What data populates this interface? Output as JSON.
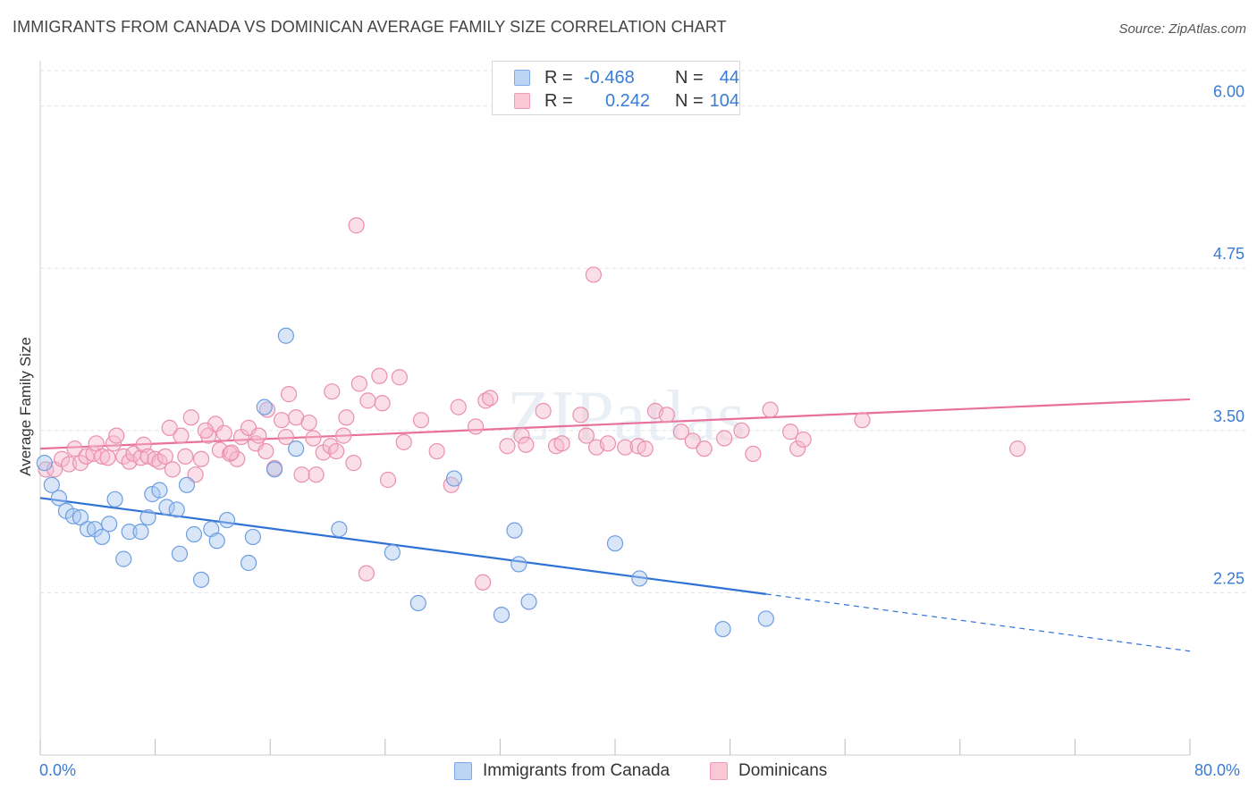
{
  "title": "IMMIGRANTS FROM CANADA VS DOMINICAN AVERAGE FAMILY SIZE CORRELATION CHART",
  "source": "Source: ZipAtlas.com",
  "colors": {
    "blue_fill": "#a9c8f0",
    "blue_stroke": "#6d9ee0",
    "blue_line": "#2f72d6",
    "pink_fill": "#f7b9cb",
    "pink_stroke": "#ea8fac",
    "pink_line": "#e8709a",
    "tick_text": "#3a7bd5",
    "grid": "#e3e3e3"
  },
  "legend": {
    "rows": [
      {
        "r_label": "R =",
        "r_value": "-0.468",
        "n_label": "N =",
        "n_value": "44",
        "color": "blue"
      },
      {
        "r_label": "R =",
        "r_value": "0.242",
        "n_label": "N =",
        "n_value": "104",
        "color": "pink"
      }
    ]
  },
  "bottom_legend": [
    {
      "label": "Immigrants from Canada",
      "color": "blue"
    },
    {
      "label": "Dominicans",
      "color": "pink"
    }
  ],
  "chart_data": {
    "type": "scatter",
    "ylabel": "Average Family Size",
    "xlabel": "",
    "xlim": [
      0,
      80
    ],
    "ylim": [
      1.0,
      6.3
    ],
    "x_tick_labels": [
      "0.0%",
      "80.0%"
    ],
    "y_ticks": [
      2.25,
      3.5,
      4.75,
      6.0
    ],
    "y_tick_labels": [
      "2.25",
      "3.50",
      "4.75",
      "6.00"
    ],
    "grid": "horizontal dashed",
    "watermark": "ZIPatlas",
    "series": [
      {
        "name": "Immigrants from Canada",
        "color": "blue",
        "points": [
          [
            0.3,
            3.25
          ],
          [
            0.8,
            3.08
          ],
          [
            1.3,
            2.98
          ],
          [
            1.8,
            2.88
          ],
          [
            2.3,
            2.84
          ],
          [
            2.8,
            2.83
          ],
          [
            3.3,
            2.74
          ],
          [
            3.8,
            2.74
          ],
          [
            4.3,
            2.68
          ],
          [
            4.8,
            2.78
          ],
          [
            5.2,
            2.97
          ],
          [
            5.8,
            2.51
          ],
          [
            6.2,
            2.72
          ],
          [
            7.0,
            2.72
          ],
          [
            7.5,
            2.83
          ],
          [
            7.8,
            3.01
          ],
          [
            8.3,
            3.04
          ],
          [
            8.8,
            2.91
          ],
          [
            9.5,
            2.89
          ],
          [
            9.7,
            2.55
          ],
          [
            10.2,
            3.08
          ],
          [
            10.7,
            2.7
          ],
          [
            11.2,
            2.35
          ],
          [
            11.9,
            2.74
          ],
          [
            12.3,
            2.65
          ],
          [
            13.0,
            2.81
          ],
          [
            14.5,
            2.48
          ],
          [
            14.8,
            2.68
          ],
          [
            15.6,
            3.68
          ],
          [
            16.3,
            3.2
          ],
          [
            17.1,
            4.23
          ],
          [
            17.8,
            3.36
          ],
          [
            20.8,
            2.74
          ],
          [
            24.5,
            2.56
          ],
          [
            26.3,
            2.17
          ],
          [
            28.8,
            3.13
          ],
          [
            32.1,
            2.08
          ],
          [
            33.0,
            2.73
          ],
          [
            33.3,
            2.47
          ],
          [
            34.0,
            2.18
          ],
          [
            40.0,
            2.63
          ],
          [
            41.7,
            2.36
          ],
          [
            47.5,
            1.97
          ],
          [
            50.5,
            2.05
          ]
        ],
        "trend": {
          "x0": 0.0,
          "y0": 2.98,
          "x1": 50.5,
          "y1": 2.24,
          "dashed_to_x": 80.0,
          "dashed_to_y": 1.8
        }
      },
      {
        "name": "Dominicans",
        "color": "pink",
        "points": [
          [
            0.4,
            3.2
          ],
          [
            1.0,
            3.2
          ],
          [
            1.5,
            3.28
          ],
          [
            2.0,
            3.24
          ],
          [
            2.4,
            3.36
          ],
          [
            2.8,
            3.25
          ],
          [
            3.2,
            3.3
          ],
          [
            3.7,
            3.32
          ],
          [
            3.9,
            3.4
          ],
          [
            4.3,
            3.3
          ],
          [
            4.7,
            3.29
          ],
          [
            5.1,
            3.4
          ],
          [
            5.3,
            3.46
          ],
          [
            5.8,
            3.3
          ],
          [
            6.2,
            3.26
          ],
          [
            6.5,
            3.32
          ],
          [
            7.0,
            3.29
          ],
          [
            7.2,
            3.39
          ],
          [
            7.5,
            3.3
          ],
          [
            8.0,
            3.28
          ],
          [
            8.3,
            3.26
          ],
          [
            8.7,
            3.3
          ],
          [
            9.2,
            3.2
          ],
          [
            9.8,
            3.46
          ],
          [
            10.1,
            3.3
          ],
          [
            10.5,
            3.6
          ],
          [
            10.8,
            3.16
          ],
          [
            11.2,
            3.28
          ],
          [
            11.7,
            3.46
          ],
          [
            12.2,
            3.55
          ],
          [
            12.5,
            3.35
          ],
          [
            12.8,
            3.48
          ],
          [
            13.2,
            3.32
          ],
          [
            13.7,
            3.28
          ],
          [
            14.0,
            3.45
          ],
          [
            14.5,
            3.52
          ],
          [
            15.0,
            3.4
          ],
          [
            15.2,
            3.46
          ],
          [
            15.7,
            3.34
          ],
          [
            15.8,
            3.66
          ],
          [
            16.3,
            3.21
          ],
          [
            16.8,
            3.58
          ],
          [
            17.1,
            3.45
          ],
          [
            17.3,
            3.78
          ],
          [
            17.8,
            3.6
          ],
          [
            18.2,
            3.16
          ],
          [
            18.7,
            3.56
          ],
          [
            19.0,
            3.44
          ],
          [
            19.2,
            3.16
          ],
          [
            19.7,
            3.33
          ],
          [
            20.2,
            3.38
          ],
          [
            20.6,
            3.34
          ],
          [
            21.1,
            3.46
          ],
          [
            21.3,
            3.6
          ],
          [
            21.8,
            3.25
          ],
          [
            22.2,
            3.86
          ],
          [
            22.8,
            3.73
          ],
          [
            23.6,
            3.92
          ],
          [
            23.8,
            3.71
          ],
          [
            24.2,
            3.12
          ],
          [
            25.0,
            3.91
          ],
          [
            25.3,
            3.41
          ],
          [
            26.5,
            3.58
          ],
          [
            27.6,
            3.34
          ],
          [
            28.6,
            3.08
          ],
          [
            29.1,
            3.68
          ],
          [
            30.3,
            3.53
          ],
          [
            31.0,
            3.73
          ],
          [
            31.3,
            3.75
          ],
          [
            32.5,
            3.38
          ],
          [
            33.5,
            3.46
          ],
          [
            33.8,
            3.39
          ],
          [
            35.0,
            3.65
          ],
          [
            35.9,
            3.38
          ],
          [
            37.6,
            3.62
          ],
          [
            38.0,
            3.46
          ],
          [
            38.7,
            3.37
          ],
          [
            39.5,
            3.4
          ],
          [
            40.7,
            3.37
          ],
          [
            41.6,
            3.38
          ],
          [
            42.1,
            3.36
          ],
          [
            42.8,
            3.65
          ],
          [
            43.6,
            3.62
          ],
          [
            44.6,
            3.49
          ],
          [
            45.4,
            3.42
          ],
          [
            46.2,
            3.36
          ],
          [
            47.6,
            3.44
          ],
          [
            48.8,
            3.5
          ],
          [
            49.6,
            3.32
          ],
          [
            50.8,
            3.66
          ],
          [
            52.2,
            3.49
          ],
          [
            52.7,
            3.36
          ],
          [
            53.1,
            3.43
          ],
          [
            57.2,
            3.58
          ],
          [
            68.0,
            3.36
          ],
          [
            22.0,
            5.08
          ],
          [
            20.3,
            3.8
          ],
          [
            22.7,
            2.4
          ],
          [
            30.8,
            2.33
          ],
          [
            38.5,
            4.7
          ],
          [
            36.3,
            3.4
          ],
          [
            13.3,
            3.33
          ],
          [
            9.0,
            3.52
          ],
          [
            11.5,
            3.5
          ]
        ],
        "trend": {
          "x0": 0.0,
          "y0": 3.36,
          "x1": 80.0,
          "y1": 3.74
        }
      }
    ]
  }
}
